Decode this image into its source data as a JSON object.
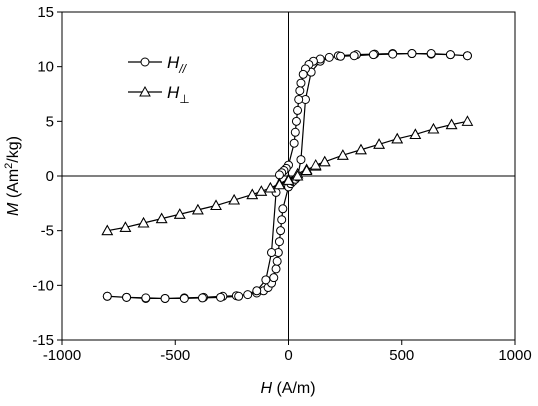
{
  "chart_data": {
    "type": "line",
    "xlim": [
      -1000,
      1000
    ],
    "ylim": [
      -15,
      15
    ],
    "x_ticks": [
      -1000,
      -500,
      0,
      500,
      1000
    ],
    "y_ticks": [
      -15,
      -10,
      -5,
      0,
      5,
      10,
      15
    ],
    "x_tick_labels": [
      "-1000",
      "-500",
      "0",
      "500",
      "1000"
    ],
    "y_tick_labels": [
      "-15",
      "-10",
      "-5",
      "0",
      "5",
      "10",
      "15"
    ],
    "xlabel": {
      "symbol": "H",
      "unit": " (A/m)"
    },
    "ylabel": {
      "symbol": "M",
      "unit_pre": " (Am",
      "unit_sup": "2",
      "unit_post": "/kg)"
    },
    "grid": false,
    "zero_lines": true,
    "legend_position": "top-left",
    "series": [
      {
        "name": "H",
        "name_sub": "//",
        "marker": "circle",
        "x": [
          -800,
          -715,
          -630,
          -545,
          -460,
          -375,
          -290,
          -230,
          -180,
          -140,
          -110,
          -90,
          -75,
          -65,
          -55,
          -50,
          -45,
          -40,
          -35,
          -30,
          -25,
          0,
          10,
          20,
          30,
          40,
          55,
          75,
          100,
          140,
          220,
          300,
          380,
          460,
          545,
          630,
          715,
          790,
          790,
          715,
          630,
          545,
          460,
          375,
          290,
          230,
          180,
          140,
          110,
          90,
          75,
          65,
          55,
          50,
          45,
          40,
          35,
          30,
          25,
          0,
          -10,
          -20,
          -30,
          -40,
          -55,
          -75,
          -100,
          -140,
          -220,
          -300,
          -380,
          -460,
          -545,
          -630,
          -715,
          -800
        ],
        "y": [
          -11.0,
          -11.1,
          -11.2,
          -11.2,
          -11.15,
          -11.1,
          -11.0,
          -10.95,
          -10.85,
          -10.7,
          -10.5,
          -10.2,
          -9.8,
          -9.3,
          -8.5,
          -7.8,
          -7.0,
          -6.0,
          -5.0,
          -4.0,
          -3.0,
          -1.0,
          -0.7,
          -0.5,
          -0.3,
          -0.1,
          1.5,
          7.0,
          9.5,
          10.5,
          11.0,
          11.1,
          11.15,
          11.2,
          11.2,
          11.15,
          11.1,
          11.0,
          11.0,
          11.1,
          11.2,
          11.2,
          11.15,
          11.1,
          11.0,
          10.95,
          10.85,
          10.7,
          10.5,
          10.2,
          9.8,
          9.3,
          8.5,
          7.8,
          7.0,
          6.0,
          5.0,
          4.0,
          3.0,
          1.0,
          0.7,
          0.5,
          0.3,
          0.1,
          -1.5,
          -7.0,
          -9.5,
          -10.5,
          -11.0,
          -11.1,
          -11.15,
          -11.2,
          -11.2,
          -11.15,
          -11.1,
          -11.0
        ]
      },
      {
        "name": "H",
        "name_sub": "⊥",
        "marker": "triangle",
        "x": [
          -800,
          -720,
          -640,
          -560,
          -480,
          -400,
          -320,
          -240,
          -160,
          -120,
          -80,
          -40,
          0,
          40,
          80,
          120,
          160,
          240,
          320,
          400,
          480,
          560,
          640,
          720,
          790,
          720,
          640,
          560,
          480,
          400,
          320,
          240,
          160,
          120,
          80,
          40,
          0,
          -40,
          -80,
          -120,
          -160,
          -240,
          -320,
          -400,
          -480,
          -560,
          -640,
          -720,
          -800
        ],
        "y": [
          -5.0,
          -4.7,
          -4.3,
          -3.9,
          -3.5,
          -3.1,
          -2.7,
          -2.2,
          -1.7,
          -1.4,
          -1.1,
          -0.7,
          -0.3,
          0.2,
          0.6,
          0.9,
          1.3,
          1.9,
          2.4,
          2.9,
          3.4,
          3.8,
          4.3,
          4.7,
          5.0,
          4.7,
          4.3,
          3.8,
          3.4,
          2.9,
          2.4,
          1.9,
          1.3,
          1.0,
          0.5,
          0.0,
          -0.4,
          -0.8,
          -1.1,
          -1.4,
          -1.7,
          -2.2,
          -2.7,
          -3.1,
          -3.5,
          -3.9,
          -4.3,
          -4.7,
          -5.0
        ]
      }
    ]
  }
}
